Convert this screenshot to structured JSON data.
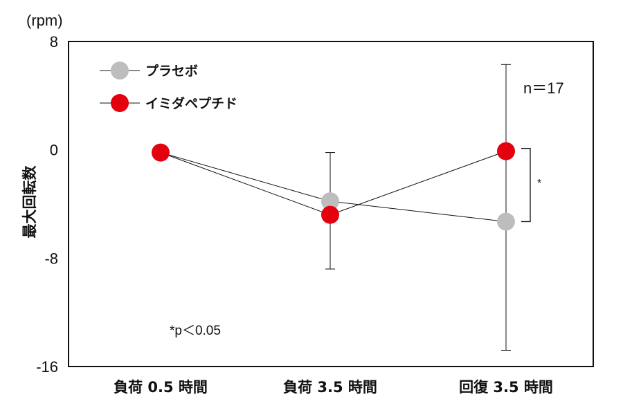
{
  "chart_data": {
    "type": "line",
    "unit": "(rpm)",
    "ylabel": "最大回転数",
    "ylim": [
      -16,
      8
    ],
    "yticks": [
      "8",
      "0",
      "-8",
      "-16"
    ],
    "categories": [
      "負荷 0.5 時間",
      "負荷 3.5 時間",
      "回復 3.5 時間"
    ],
    "series": [
      {
        "name": "プラセボ",
        "color": "#bdbdbd",
        "values": [
          -0.2,
          -3.8,
          -5.3
        ],
        "error_upper": [
          null,
          null,
          6.3
        ],
        "error_lower": [
          null,
          null,
          -14.8
        ]
      },
      {
        "name": "イミダペプチド",
        "color": "#e3000f",
        "values": [
          -0.2,
          -4.8,
          -0.1
        ],
        "error_upper": [
          null,
          -0.2,
          null
        ],
        "error_lower": [
          null,
          -8.8,
          null
        ]
      }
    ],
    "annotations": {
      "n": "n＝17",
      "significance_mark": "*",
      "p_note": "*p＜0.05"
    },
    "grid": false,
    "legend_position": "top-left"
  }
}
